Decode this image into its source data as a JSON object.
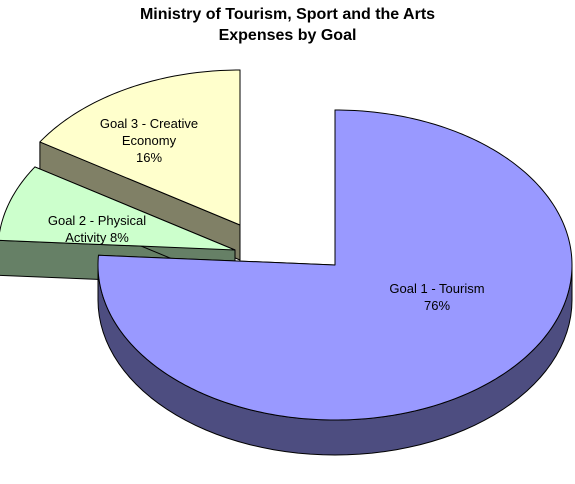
{
  "chart_data": {
    "type": "pie3d",
    "title": "Ministry of Tourism, Sport and the Arts",
    "subtitle": "Expenses by Goal",
    "categories": [
      "Goal 1 - Tourism",
      "Goal 2 - Physical Activity",
      "Goal 3 - Creative Economy"
    ],
    "values": [
      76,
      8,
      16
    ],
    "value_labels": [
      "76%",
      "8%",
      "16%"
    ],
    "colors": [
      "#9999ff",
      "#ccffcc",
      "#ffffcc"
    ]
  }
}
